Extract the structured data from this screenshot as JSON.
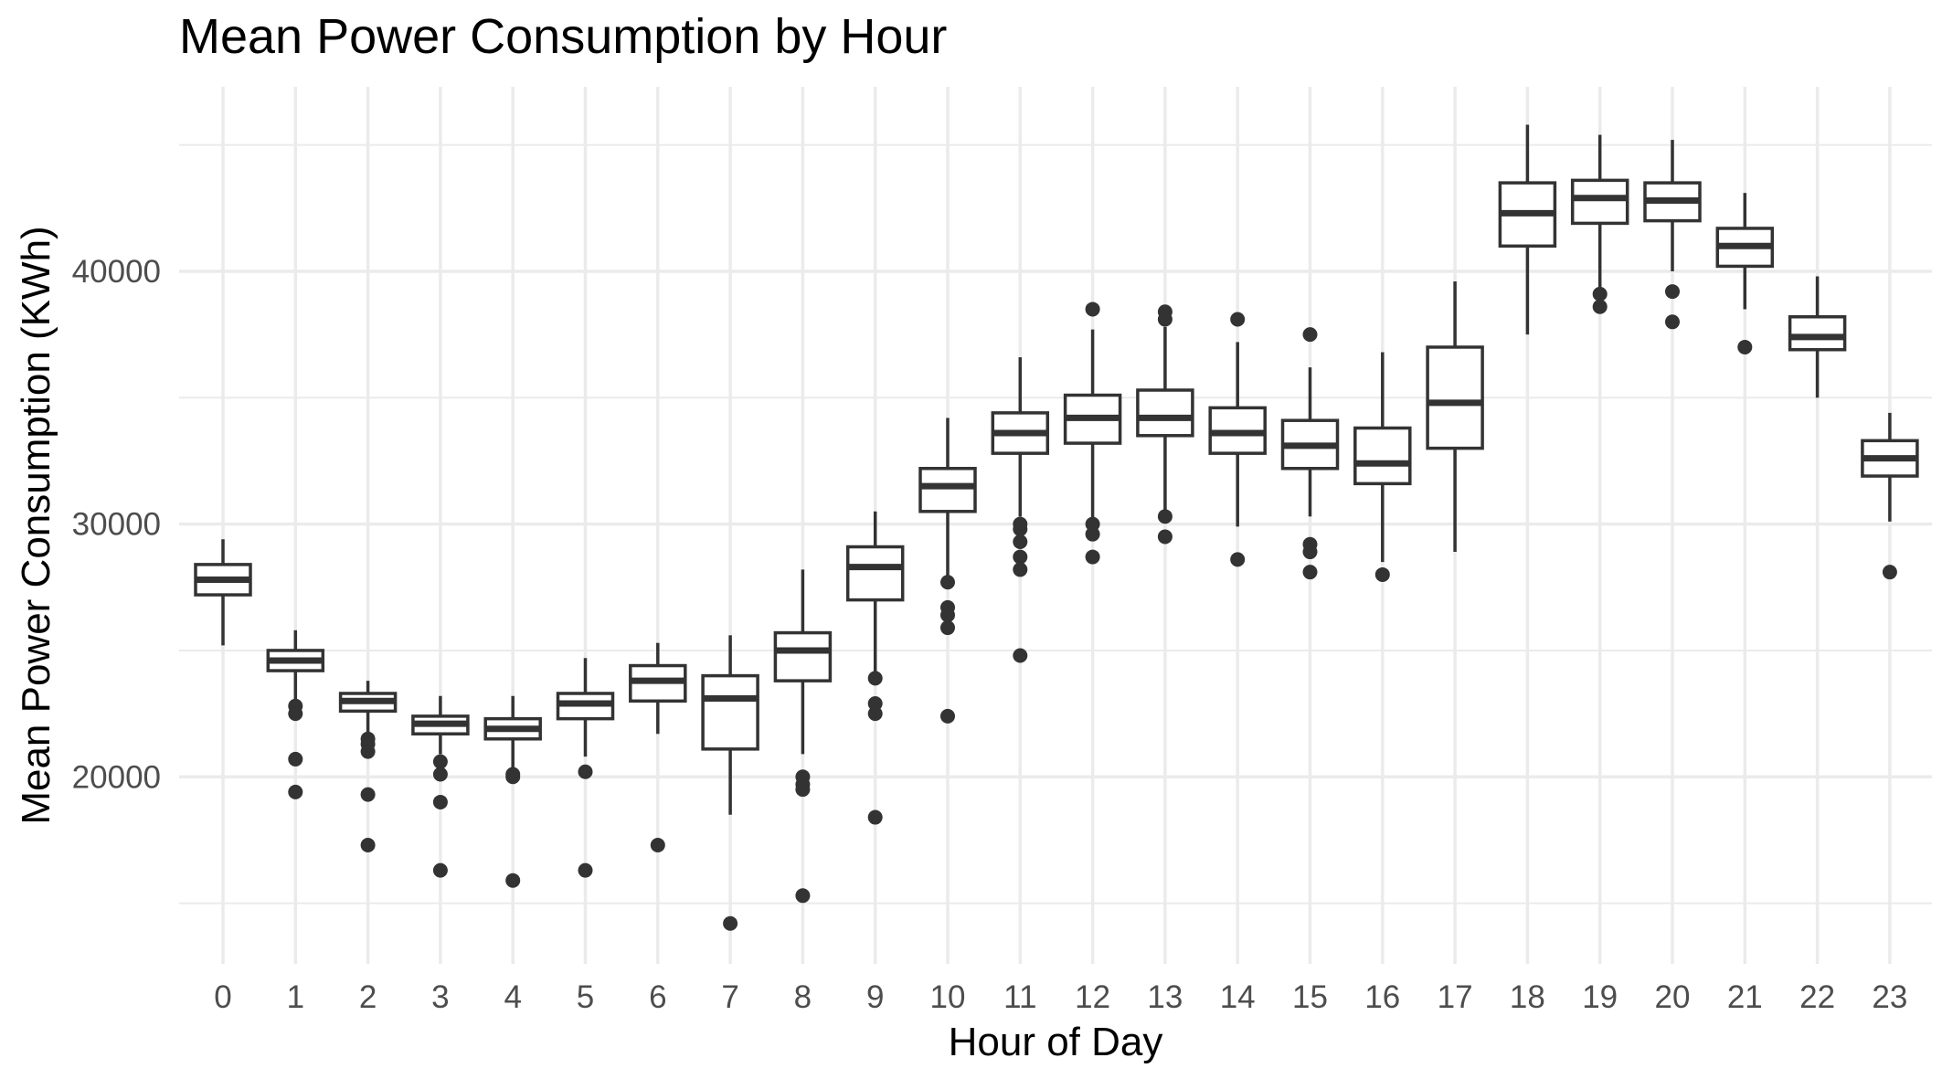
{
  "chart_data": {
    "type": "box",
    "title": "Mean Power Consumption by Hour",
    "xlabel": "Hour of Day",
    "ylabel": "Mean Power Consumption (KWh)",
    "ylim": [
      12600,
      47300
    ],
    "y_ticks": [
      20000,
      30000,
      40000
    ],
    "categories": [
      "0",
      "1",
      "2",
      "3",
      "4",
      "5",
      "6",
      "7",
      "8",
      "9",
      "10",
      "11",
      "12",
      "13",
      "14",
      "15",
      "16",
      "17",
      "18",
      "19",
      "20",
      "21",
      "22",
      "23"
    ],
    "grid": true,
    "colors": {
      "box_stroke": "#333333",
      "grid": "#ebebeb",
      "background": "#ffffff",
      "tick_text": "#4d4d4d"
    },
    "boxes": [
      {
        "hour": "0",
        "whisker_low": 25200,
        "q1": 27200,
        "median": 27800,
        "q3": 28400,
        "whisker_high": 29400,
        "outliers": []
      },
      {
        "hour": "1",
        "whisker_low": 22900,
        "q1": 24200,
        "median": 24600,
        "q3": 25000,
        "whisker_high": 25800,
        "outliers": [
          22800,
          22500,
          20700,
          19400
        ]
      },
      {
        "hour": "2",
        "whisker_low": 21700,
        "q1": 22600,
        "median": 23000,
        "q3": 23300,
        "whisker_high": 23800,
        "outliers": [
          21500,
          21300,
          21000,
          19300,
          17300
        ]
      },
      {
        "hour": "3",
        "whisker_low": 20900,
        "q1": 21700,
        "median": 22100,
        "q3": 22400,
        "whisker_high": 23200,
        "outliers": [
          20600,
          20100,
          19000,
          16300
        ]
      },
      {
        "hour": "4",
        "whisker_low": 20300,
        "q1": 21500,
        "median": 21900,
        "q3": 22300,
        "whisker_high": 23200,
        "outliers": [
          20100,
          20000,
          15900
        ]
      },
      {
        "hour": "5",
        "whisker_low": 20800,
        "q1": 22300,
        "median": 22900,
        "q3": 23300,
        "whisker_high": 24700,
        "outliers": [
          20200,
          16300
        ]
      },
      {
        "hour": "6",
        "whisker_low": 21700,
        "q1": 23000,
        "median": 23800,
        "q3": 24400,
        "whisker_high": 25300,
        "outliers": [
          17300
        ]
      },
      {
        "hour": "7",
        "whisker_low": 18500,
        "q1": 21100,
        "median": 23100,
        "q3": 24000,
        "whisker_high": 25600,
        "outliers": [
          14200
        ]
      },
      {
        "hour": "8",
        "whisker_low": 20900,
        "q1": 23800,
        "median": 25000,
        "q3": 25700,
        "whisker_high": 28200,
        "outliers": [
          20000,
          19700,
          19500,
          15300
        ]
      },
      {
        "hour": "9",
        "whisker_low": 24000,
        "q1": 27000,
        "median": 28300,
        "q3": 29100,
        "whisker_high": 30500,
        "outliers": [
          23900,
          22900,
          22500,
          18400
        ]
      },
      {
        "hour": "10",
        "whisker_low": 27900,
        "q1": 30500,
        "median": 31500,
        "q3": 32200,
        "whisker_high": 34200,
        "outliers": [
          27700,
          26700,
          26400,
          25900,
          22400
        ]
      },
      {
        "hour": "11",
        "whisker_low": 30300,
        "q1": 32800,
        "median": 33600,
        "q3": 34400,
        "whisker_high": 36600,
        "outliers": [
          30000,
          29800,
          29300,
          28700,
          28200,
          24800
        ]
      },
      {
        "hour": "12",
        "whisker_low": 30100,
        "q1": 33200,
        "median": 34200,
        "q3": 35100,
        "whisker_high": 37700,
        "outliers": [
          38500,
          30000,
          29600,
          28700
        ]
      },
      {
        "hour": "13",
        "whisker_low": 30500,
        "q1": 33500,
        "median": 34200,
        "q3": 35300,
        "whisker_high": 37800,
        "outliers": [
          38400,
          38100,
          30300,
          29500
        ]
      },
      {
        "hour": "14",
        "whisker_low": 29900,
        "q1": 32800,
        "median": 33600,
        "q3": 34600,
        "whisker_high": 37200,
        "outliers": [
          38100,
          28600
        ]
      },
      {
        "hour": "15",
        "whisker_low": 30300,
        "q1": 32200,
        "median": 33100,
        "q3": 34100,
        "whisker_high": 36200,
        "outliers": [
          37500,
          29200,
          28900,
          28100
        ]
      },
      {
        "hour": "16",
        "whisker_low": 28500,
        "q1": 31600,
        "median": 32400,
        "q3": 33800,
        "whisker_high": 36800,
        "outliers": [
          28000
        ]
      },
      {
        "hour": "17",
        "whisker_low": 28900,
        "q1": 33000,
        "median": 34800,
        "q3": 37000,
        "whisker_high": 39600,
        "outliers": []
      },
      {
        "hour": "18",
        "whisker_low": 37500,
        "q1": 41000,
        "median": 42300,
        "q3": 43500,
        "whisker_high": 45800,
        "outliers": []
      },
      {
        "hour": "19",
        "whisker_low": 39300,
        "q1": 41900,
        "median": 42900,
        "q3": 43600,
        "whisker_high": 45400,
        "outliers": [
          39100,
          38600
        ]
      },
      {
        "hour": "20",
        "whisker_low": 40000,
        "q1": 42000,
        "median": 42800,
        "q3": 43500,
        "whisker_high": 45200,
        "outliers": [
          39200,
          38000
        ]
      },
      {
        "hour": "21",
        "whisker_low": 38500,
        "q1": 40200,
        "median": 41000,
        "q3": 41700,
        "whisker_high": 43100,
        "outliers": [
          37000
        ]
      },
      {
        "hour": "22",
        "whisker_low": 35000,
        "q1": 36900,
        "median": 37400,
        "q3": 38200,
        "whisker_high": 39800,
        "outliers": []
      },
      {
        "hour": "23",
        "whisker_low": 30100,
        "q1": 31900,
        "median": 32600,
        "q3": 33300,
        "whisker_high": 34400,
        "outliers": [
          28100
        ]
      }
    ]
  }
}
